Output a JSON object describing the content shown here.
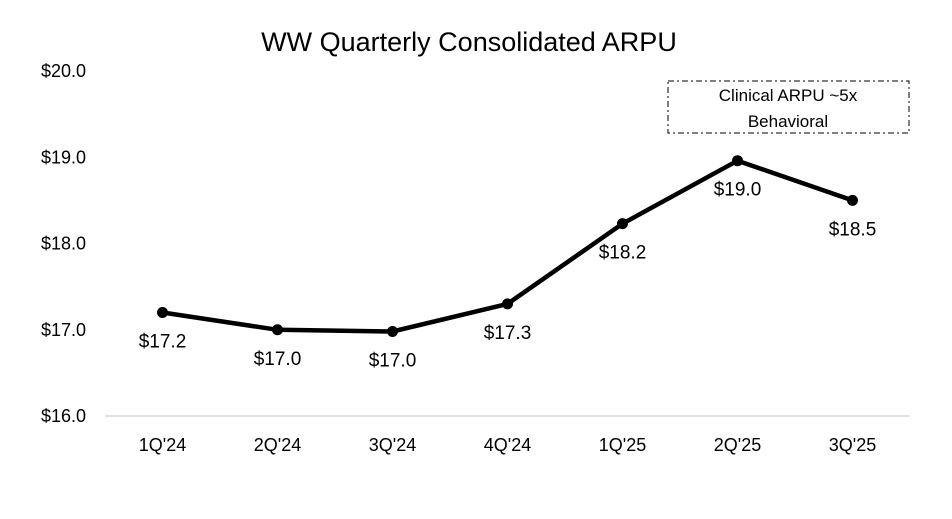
{
  "chart_data": {
    "type": "line",
    "title": "WW Quarterly Consolidated ARPU",
    "xlabel": "",
    "ylabel": "",
    "categories": [
      "1Q'24",
      "2Q'24",
      "3Q'24",
      "4Q'24",
      "1Q'25",
      "2Q'25",
      "3Q'25"
    ],
    "series": [
      {
        "values": [
          17.2,
          17.0,
          16.98,
          17.3,
          18.23,
          18.96,
          18.5
        ],
        "data_labels": [
          "$17.2",
          "$17.0",
          "$17.0",
          "$17.3",
          "$18.2",
          "$19.0",
          "$18.5"
        ]
      }
    ],
    "ylim": [
      16.0,
      20.0
    ],
    "yticks": [
      16.0,
      17.0,
      18.0,
      19.0,
      20.0
    ],
    "ytick_labels": [
      "$16.0",
      "$17.0",
      "$18.0",
      "$19.0",
      "$20.0"
    ],
    "grid": false,
    "annotation": {
      "lines": [
        "Clinical ARPU ~5x",
        "Behavioral"
      ]
    },
    "colors": {
      "line": "#000000",
      "axis": "#d9d9d9",
      "text": "#000000"
    }
  }
}
